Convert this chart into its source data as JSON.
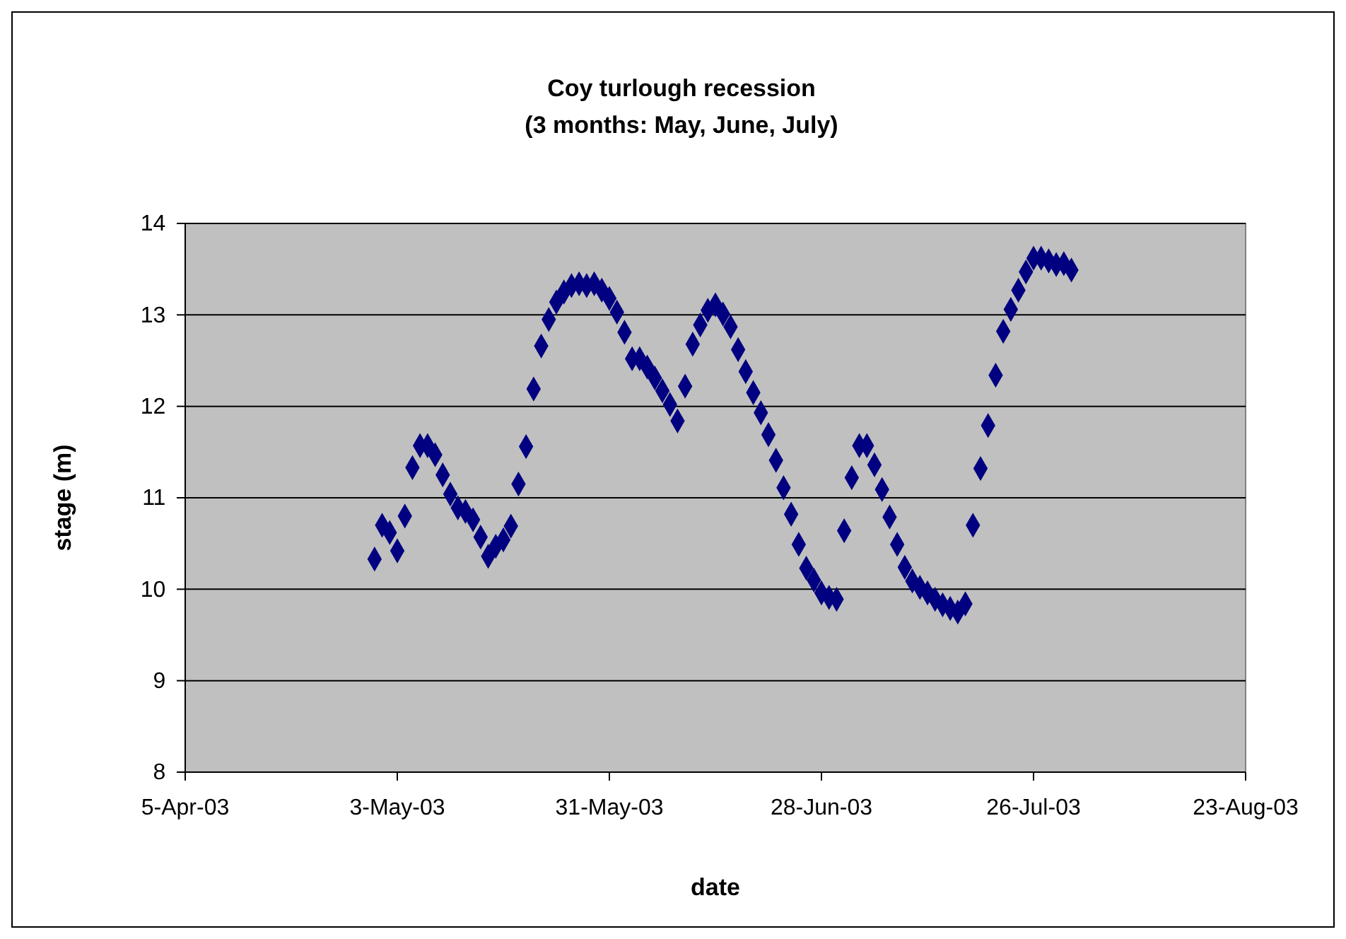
{
  "chart_data": {
    "type": "scatter",
    "title": "Coy turlough recession",
    "subtitle": "(3 months: May, June, July)",
    "xlabel": "date",
    "ylabel": "stage (m)",
    "x": [
      "2003-04-30",
      "2003-05-01",
      "2003-05-02",
      "2003-05-03",
      "2003-05-04",
      "2003-05-05",
      "2003-05-06",
      "2003-05-07",
      "2003-05-08",
      "2003-05-09",
      "2003-05-10",
      "2003-05-11",
      "2003-05-12",
      "2003-05-13",
      "2003-05-14",
      "2003-05-15",
      "2003-05-16",
      "2003-05-17",
      "2003-05-18",
      "2003-05-19",
      "2003-05-20",
      "2003-05-21",
      "2003-05-22",
      "2003-05-23",
      "2003-05-24",
      "2003-05-25",
      "2003-05-26",
      "2003-05-27",
      "2003-05-28",
      "2003-05-29",
      "2003-05-30",
      "2003-05-31",
      "2003-06-01",
      "2003-06-02",
      "2003-06-03",
      "2003-06-04",
      "2003-06-05",
      "2003-06-06",
      "2003-06-07",
      "2003-06-08",
      "2003-06-09",
      "2003-06-10",
      "2003-06-11",
      "2003-06-12",
      "2003-06-13",
      "2003-06-14",
      "2003-06-15",
      "2003-06-16",
      "2003-06-17",
      "2003-06-18",
      "2003-06-19",
      "2003-06-20",
      "2003-06-21",
      "2003-06-22",
      "2003-06-23",
      "2003-06-24",
      "2003-06-25",
      "2003-06-26",
      "2003-06-27",
      "2003-06-28",
      "2003-06-29",
      "2003-06-30",
      "2003-07-01",
      "2003-07-02",
      "2003-07-03",
      "2003-07-04",
      "2003-07-05",
      "2003-07-06",
      "2003-07-07",
      "2003-07-08",
      "2003-07-09",
      "2003-07-10",
      "2003-07-11",
      "2003-07-12",
      "2003-07-13",
      "2003-07-14",
      "2003-07-15",
      "2003-07-16",
      "2003-07-17",
      "2003-07-18",
      "2003-07-19",
      "2003-07-20",
      "2003-07-21",
      "2003-07-22",
      "2003-07-23",
      "2003-07-24",
      "2003-07-25",
      "2003-07-26",
      "2003-07-27",
      "2003-07-28",
      "2003-07-29",
      "2003-07-30",
      "2003-07-31"
    ],
    "series": [
      {
        "color": "#000080",
        "values": [
          10.33,
          10.7,
          10.62,
          10.42,
          10.8,
          11.33,
          11.57,
          11.57,
          11.47,
          11.25,
          11.04,
          10.89,
          10.85,
          10.76,
          10.57,
          10.36,
          10.47,
          10.54,
          10.69,
          11.15,
          11.56,
          12.19,
          12.66,
          12.95,
          13.14,
          13.25,
          13.32,
          13.34,
          13.32,
          13.34,
          13.27,
          13.18,
          13.03,
          12.81,
          12.52,
          12.52,
          12.43,
          12.31,
          12.17,
          12.02,
          11.84,
          12.22,
          12.68,
          12.89,
          13.05,
          13.11,
          13.01,
          12.87,
          12.62,
          12.38,
          12.15,
          11.93,
          11.69,
          11.41,
          11.11,
          10.82,
          10.49,
          10.23,
          10.1,
          9.96,
          9.91,
          9.89,
          10.64,
          11.22,
          11.57,
          11.57,
          11.36,
          11.09,
          10.79,
          10.49,
          10.24,
          10.09,
          10.02,
          9.96,
          9.89,
          9.83,
          9.79,
          9.75,
          9.84,
          10.7,
          11.32,
          11.79,
          12.34,
          12.82,
          13.06,
          13.27,
          13.47,
          13.62,
          13.62,
          13.59,
          13.55,
          13.56,
          13.49
        ]
      }
    ],
    "xlim": [
      "2003-04-05",
      "2003-08-23"
    ],
    "xticks": [
      {
        "value": "2003-04-05",
        "label": "5-Apr-03"
      },
      {
        "value": "2003-05-03",
        "label": "3-May-03"
      },
      {
        "value": "2003-05-31",
        "label": "31-May-03"
      },
      {
        "value": "2003-06-28",
        "label": "28-Jun-03"
      },
      {
        "value": "2003-07-26",
        "label": "26-Jul-03"
      },
      {
        "value": "2003-08-23",
        "label": "23-Aug-03"
      }
    ],
    "ylim": [
      8,
      14
    ],
    "yticks": [
      8,
      9,
      10,
      11,
      12,
      13,
      14
    ],
    "grid": "y",
    "marker": "diamond"
  }
}
